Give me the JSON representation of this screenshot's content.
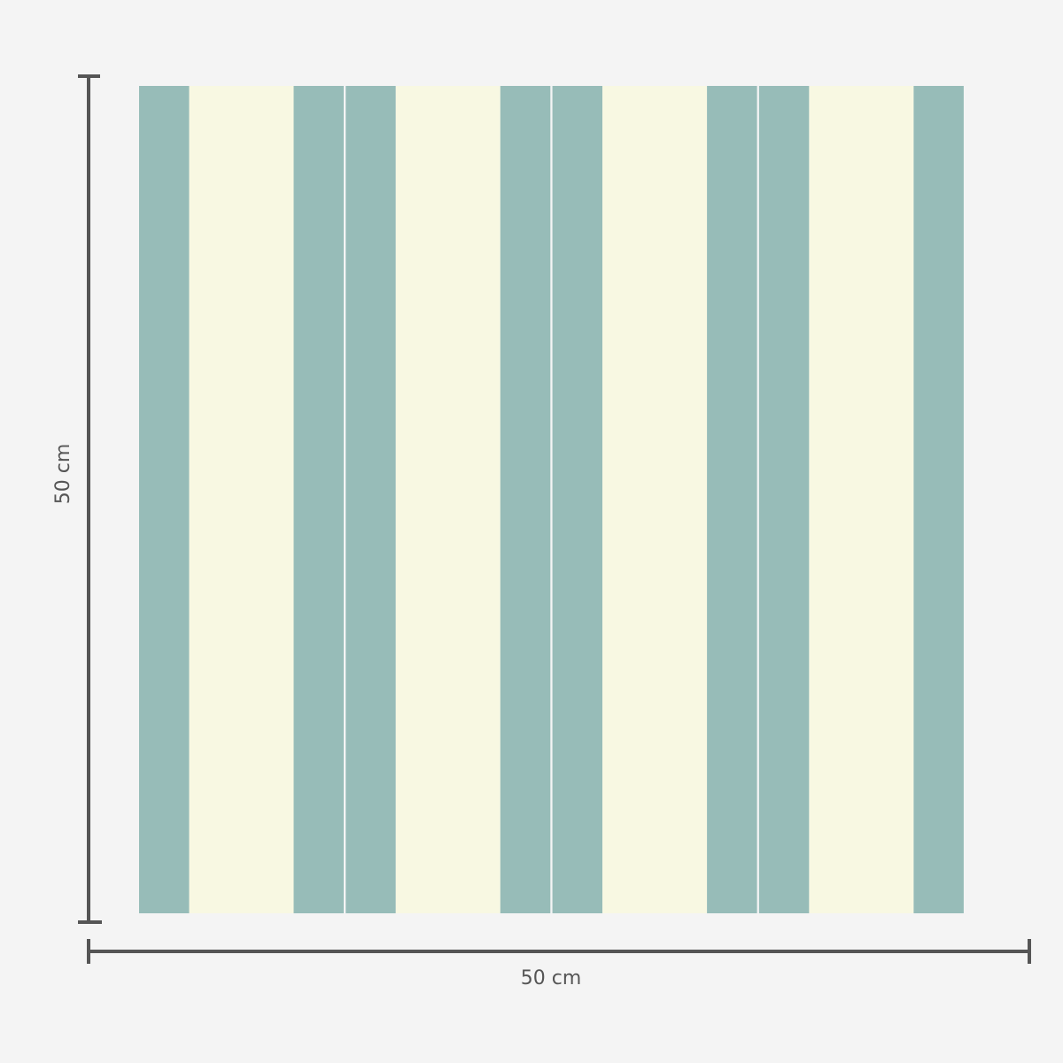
{
  "dimensions": {
    "height_label": "50 cm",
    "width_label": "50 cm"
  },
  "colors": {
    "teal": "#97bcb8",
    "cream": "#f8f8e2",
    "background": "#f4f4f4",
    "dimension_line": "#555555"
  },
  "stripe_sequence": [
    "teal",
    "cream",
    "teal",
    "teal",
    "cream",
    "teal",
    "teal",
    "cream",
    "teal",
    "teal",
    "cream",
    "teal"
  ]
}
